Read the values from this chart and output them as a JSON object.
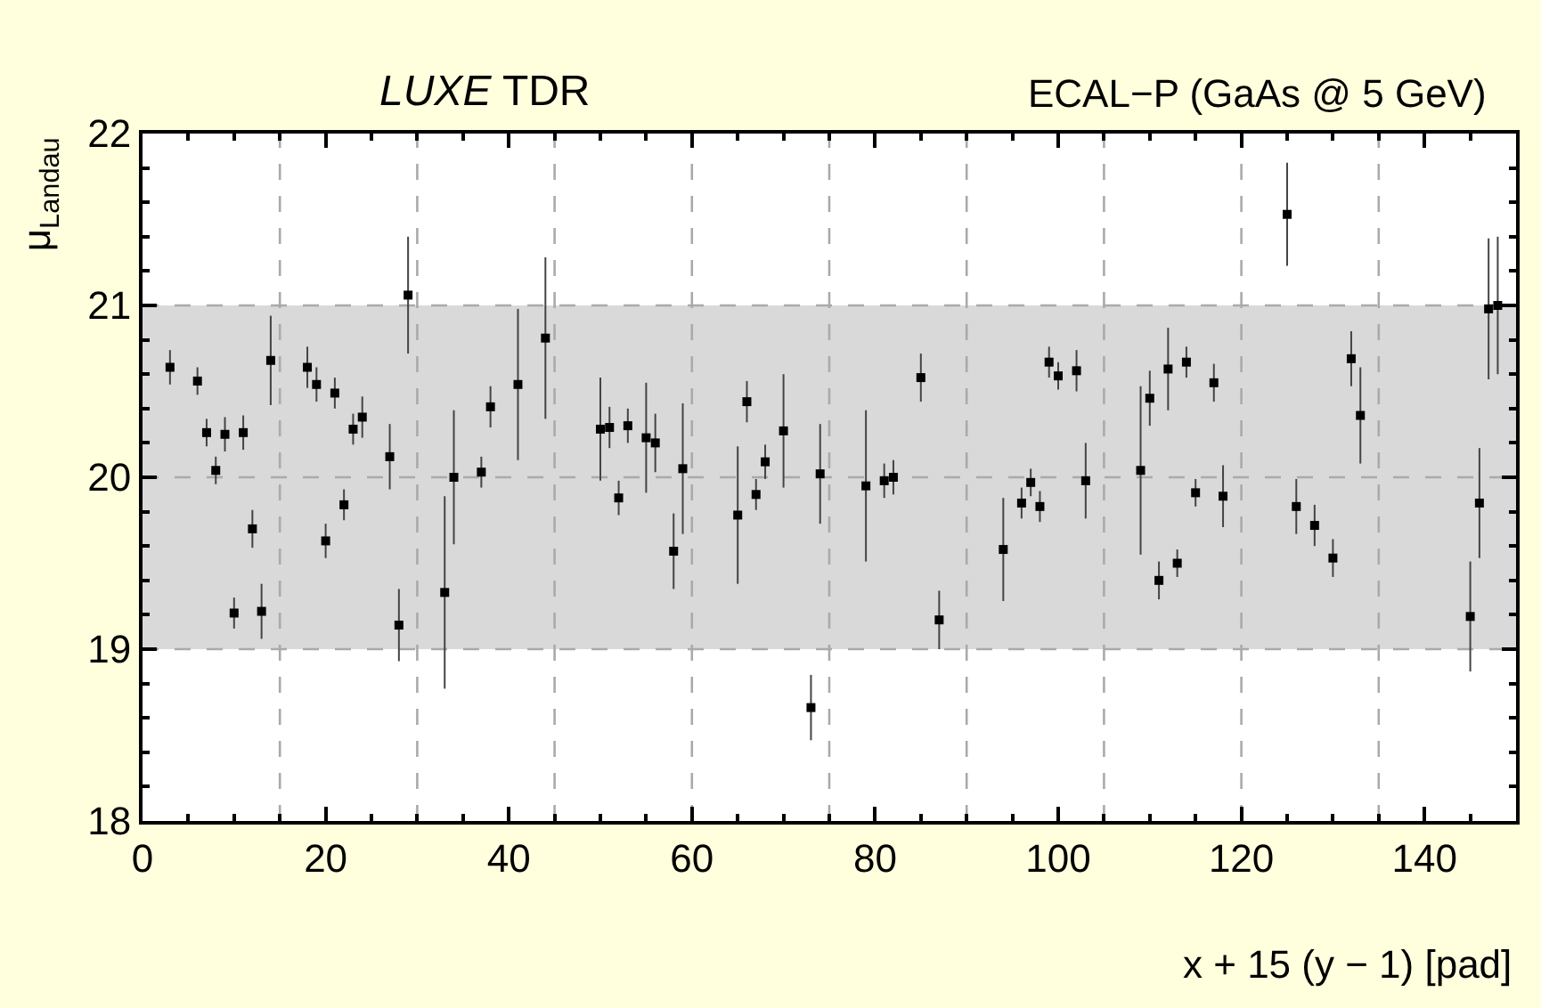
{
  "chart_data": {
    "type": "scatter",
    "title": "LUXE TDR",
    "subtitle": "ECAL−P (GaAs @ 5 GeV)",
    "xlabel": "x + 15 (y − 1) [pad]",
    "ylabel": "μ$_{Landau}$",
    "x": [
      3,
      6,
      7,
      8,
      9,
      10,
      11,
      12,
      13,
      14,
      18,
      19,
      20,
      21,
      22,
      23,
      24,
      27,
      28,
      29,
      33,
      34,
      37,
      38,
      41,
      44,
      50,
      51,
      52,
      53,
      55,
      56,
      58,
      59,
      65,
      66,
      67,
      68,
      70,
      73,
      74,
      79,
      81,
      82,
      85,
      87,
      94,
      96,
      97,
      98,
      99,
      100,
      102,
      103,
      109,
      110,
      111,
      112,
      113,
      114,
      115,
      117,
      118,
      125,
      126,
      128,
      130,
      132,
      133,
      145,
      146,
      147,
      148
    ],
    "series": [
      {
        "color": "#000000",
        "values": [
          20.64,
          20.56,
          20.26,
          20.04,
          20.25,
          19.21,
          20.26,
          19.7,
          19.22,
          20.68,
          20.64,
          20.54,
          19.63,
          20.49,
          19.84,
          20.28,
          20.35,
          20.12,
          19.14,
          21.06,
          19.33,
          20.0,
          20.03,
          20.41,
          20.54,
          20.81,
          20.28,
          20.29,
          19.88,
          20.3,
          20.23,
          20.2,
          19.57,
          20.05,
          19.78,
          20.44,
          19.9,
          20.09,
          20.27,
          18.66,
          20.02,
          19.95,
          19.98,
          20.0,
          20.58,
          19.17,
          19.58,
          19.85,
          19.97,
          19.83,
          20.67,
          20.59,
          20.62,
          19.98,
          20.04,
          20.46,
          19.4,
          20.63,
          19.5,
          20.67,
          19.91,
          20.55,
          19.89,
          21.53,
          19.83,
          19.72,
          19.53,
          20.69,
          20.36,
          19.19,
          19.85,
          20.98,
          21.0
        ],
        "errors": [
          0.1,
          0.08,
          0.08,
          0.08,
          0.1,
          0.09,
          0.1,
          0.11,
          0.16,
          0.26,
          0.12,
          0.1,
          0.1,
          0.09,
          0.09,
          0.09,
          0.12,
          0.19,
          0.21,
          0.34,
          0.56,
          0.39,
          0.09,
          0.12,
          0.44,
          0.47,
          0.3,
          0.12,
          0.1,
          0.1,
          0.32,
          0.17,
          0.22,
          0.38,
          0.4,
          0.12,
          0.09,
          0.1,
          0.33,
          0.19,
          0.29,
          0.44,
          0.1,
          0.1,
          0.14,
          0.17,
          0.3,
          0.09,
          0.08,
          0.09,
          0.09,
          0.08,
          0.12,
          0.22,
          0.49,
          0.16,
          0.11,
          0.24,
          0.08,
          0.09,
          0.08,
          0.11,
          0.18,
          0.3,
          0.16,
          0.12,
          0.11,
          0.16,
          0.28,
          0.32,
          0.32,
          0.41,
          0.4
        ]
      }
    ],
    "xlim": [
      0,
      150
    ],
    "xticks": [
      0,
      20,
      40,
      60,
      80,
      100,
      120,
      140
    ],
    "ylim": [
      18,
      22
    ],
    "yticks": [
      18,
      19,
      20,
      21,
      22
    ],
    "bands": [
      {
        "axis": "y",
        "from": 19,
        "to": 21,
        "color": "#d9d9d9"
      }
    ],
    "ref_lines": [
      {
        "axis": "y",
        "value": 19,
        "color": "#aaaaaa",
        "line_style": "dashed"
      },
      {
        "axis": "y",
        "value": 20,
        "color": "#aaaaaa",
        "line_style": "dashed"
      },
      {
        "axis": "y",
        "value": 21,
        "color": "#aaaaaa",
        "line_style": "dashed"
      },
      {
        "axis": "x",
        "value": 15,
        "color": "#aaaaaa",
        "line_style": "dashed"
      },
      {
        "axis": "x",
        "value": 30,
        "color": "#aaaaaa",
        "line_style": "dashed"
      },
      {
        "axis": "x",
        "value": 45,
        "color": "#aaaaaa",
        "line_style": "dashed"
      },
      {
        "axis": "x",
        "value": 60,
        "color": "#aaaaaa",
        "line_style": "dashed"
      },
      {
        "axis": "x",
        "value": 75,
        "color": "#aaaaaa",
        "line_style": "dashed"
      },
      {
        "axis": "x",
        "value": 90,
        "color": "#aaaaaa",
        "line_style": "dashed"
      },
      {
        "axis": "x",
        "value": 105,
        "color": "#aaaaaa",
        "line_style": "dashed"
      },
      {
        "axis": "x",
        "value": 120,
        "color": "#aaaaaa",
        "line_style": "dashed"
      },
      {
        "axis": "x",
        "value": 135,
        "color": "#aaaaaa",
        "line_style": "dashed"
      }
    ],
    "marker": "square"
  }
}
